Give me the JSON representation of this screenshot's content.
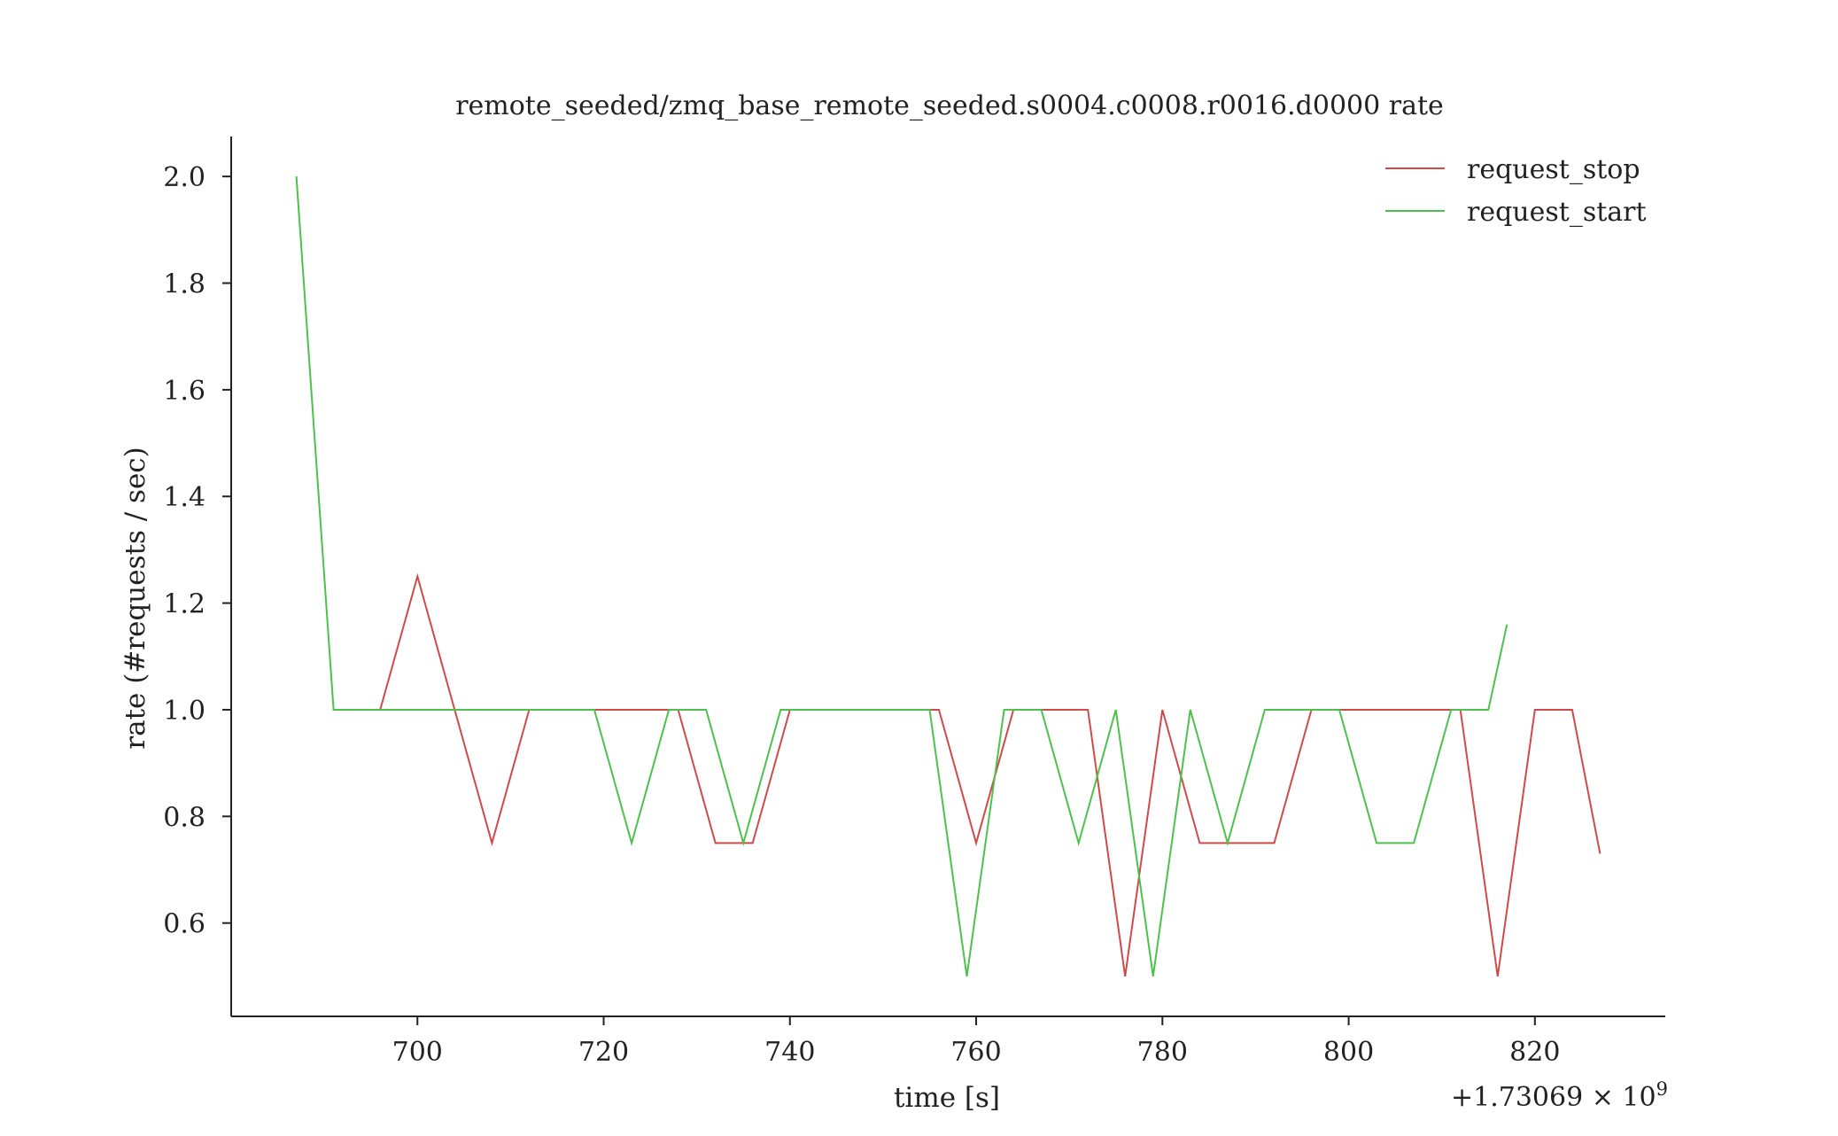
{
  "chart_data": {
    "type": "line",
    "title": "remote_seeded/zmq_base_remote_seeded.s0004.c0008.r0016.d0000 rate",
    "xlabel": "time [s]",
    "ylabel": "rate (#requests / sec)",
    "x_offset_label": "+1.73069 × 10",
    "x_offset_exponent": "9",
    "xlim": [
      680,
      834
    ],
    "ylim": [
      0.425,
      2.075
    ],
    "xticks": [
      700,
      720,
      740,
      760,
      780,
      800,
      820
    ],
    "yticks": [
      0.6,
      0.8,
      1.0,
      1.2,
      1.4,
      1.6,
      1.8,
      2.0
    ],
    "xtick_labels": [
      "700",
      "720",
      "740",
      "760",
      "780",
      "800",
      "820"
    ],
    "ytick_labels": [
      "0.6",
      "0.8",
      "1.0",
      "1.2",
      "1.4",
      "1.6",
      "1.8",
      "2.0"
    ],
    "grid": false,
    "legend_position": "top-right",
    "series": [
      {
        "name": "request_stop",
        "color": "#d04a4a",
        "x": [
          696,
          700,
          704,
          708,
          712,
          716,
          720,
          724,
          728,
          732,
          736,
          740,
          744,
          748,
          752,
          756,
          760,
          764,
          768,
          772,
          776,
          780,
          784,
          788,
          792,
          796,
          800,
          804,
          808,
          812,
          816,
          820,
          824,
          827
        ],
        "y": [
          1.0,
          1.25,
          1.0,
          0.75,
          1.0,
          1.0,
          1.0,
          1.0,
          1.0,
          0.75,
          0.75,
          1.0,
          1.0,
          1.0,
          1.0,
          1.0,
          0.75,
          1.0,
          1.0,
          1.0,
          0.5,
          1.0,
          0.75,
          0.75,
          0.75,
          1.0,
          1.0,
          1.0,
          1.0,
          1.0,
          0.5,
          1.0,
          1.0,
          0.73
        ]
      },
      {
        "name": "request_start",
        "color": "#4cc24c",
        "x": [
          687,
          691,
          695,
          699,
          703,
          707,
          711,
          715,
          719,
          723,
          727,
          731,
          735,
          739,
          743,
          747,
          751,
          755,
          759,
          763,
          767,
          771,
          775,
          779,
          783,
          787,
          791,
          795,
          799,
          803,
          807,
          811,
          815,
          817
        ],
        "y": [
          2.0,
          1.0,
          1.0,
          1.0,
          1.0,
          1.0,
          1.0,
          1.0,
          1.0,
          0.75,
          1.0,
          1.0,
          0.75,
          1.0,
          1.0,
          1.0,
          1.0,
          1.0,
          0.5,
          1.0,
          1.0,
          0.75,
          1.0,
          0.5,
          1.0,
          0.75,
          1.0,
          1.0,
          1.0,
          0.75,
          0.75,
          1.0,
          1.0,
          1.16
        ]
      }
    ]
  }
}
